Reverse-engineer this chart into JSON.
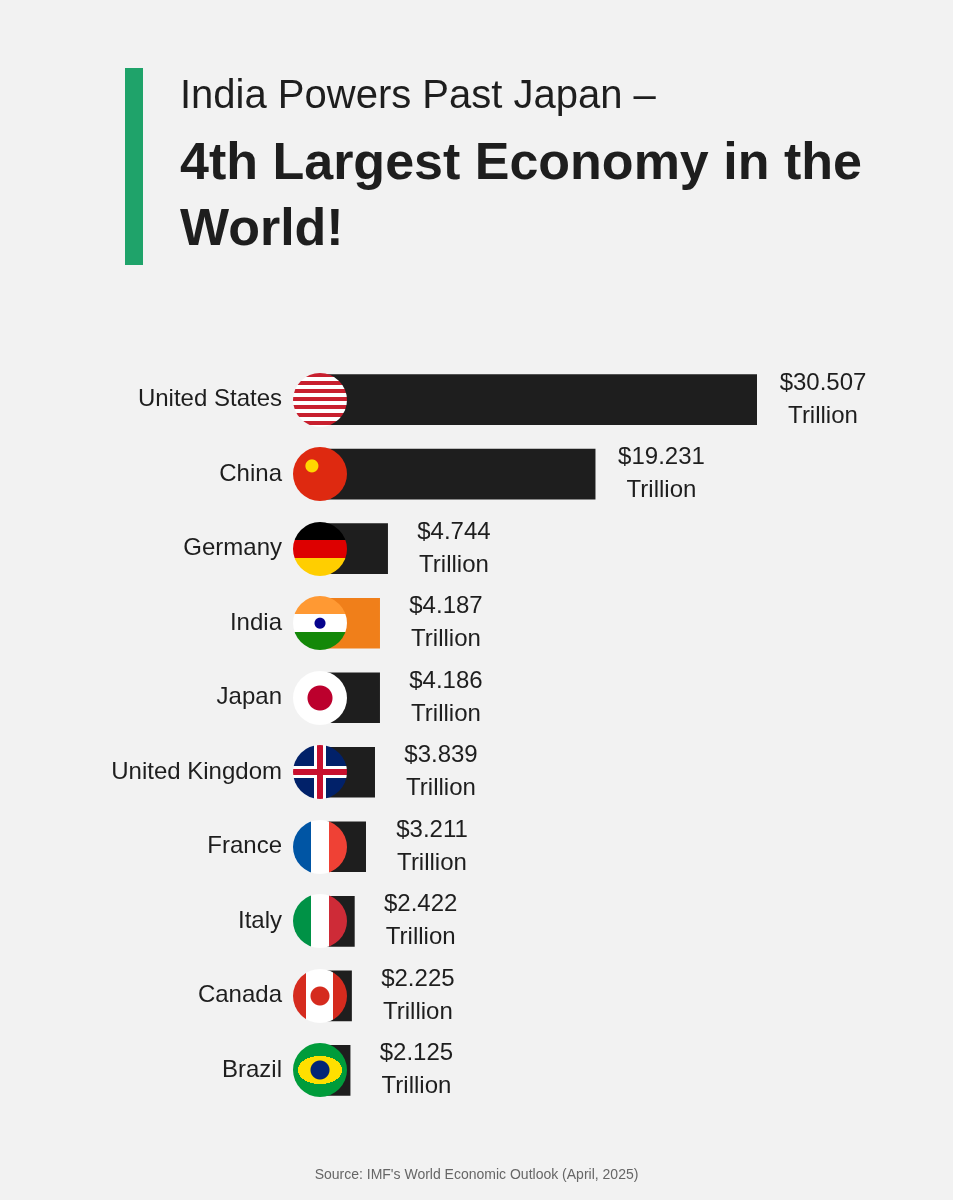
{
  "chart_data": {
    "type": "bar",
    "orientation": "horizontal",
    "title": "India Powers Past Japan –",
    "subtitle": "4th Largest Economy in the World!",
    "categories": [
      "United States",
      "China",
      "Germany",
      "India",
      "Japan",
      "United Kingdom",
      "France",
      "Italy",
      "Canada",
      "Brazil"
    ],
    "values": [
      30.507,
      19.231,
      4.744,
      4.187,
      4.186,
      3.839,
      3.211,
      2.422,
      2.225,
      2.125
    ],
    "colors": [
      "#1e1e1e",
      "#1e1e1e",
      "#1e1e1e",
      "#f07f1a",
      "#1e1e1e",
      "#1e1e1e",
      "#1e1e1e",
      "#1e1e1e",
      "#1e1e1e",
      "#1e1e1e"
    ],
    "value_labels": [
      "$30.507 Trillion",
      "$19.231 Trillion",
      "$4.744 Trillion",
      "$4.187 Trillion",
      "$4.186 Trillion",
      "$3.839 Trillion",
      "$3.211 Trillion",
      "$2.422 Trillion",
      "$2.225 Trillion",
      "$2.125 Trillion"
    ],
    "annotations": [
      "Source: IMF's World Economic Outlook (April, 2025)"
    ],
    "grid": false,
    "legend": false
  }
}
